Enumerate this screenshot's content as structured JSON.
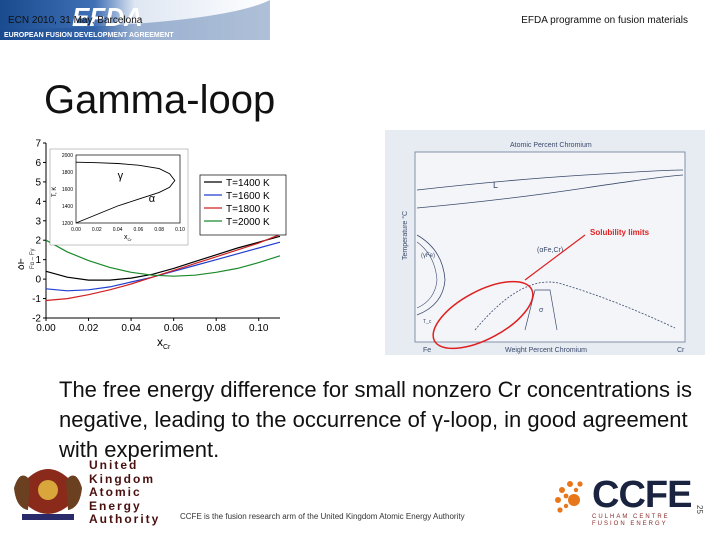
{
  "header": {
    "left_meta": "ECN 2010, 31 May, Barcelona",
    "right_meta": "EFDA programme on fusion materials",
    "logo_text": "EFDA",
    "banner_caption": "EUROPEAN FUSION DEVELOPMENT AGREEMENT",
    "colors": {
      "banner_dark": "#1a4b8f",
      "banner_light": "#e8eef7"
    }
  },
  "slide": {
    "title": "Gamma-loop",
    "body": "The free energy difference for small nonzero Cr concentrations is negative, leading to the occurrence of γ-loop, in good agreement with experiment."
  },
  "chart_data": [
    {
      "type": "line",
      "xlabel": "x",
      "xlabel_sub": "Cr",
      "ylabel": "δF",
      "ylabel_note": "Fα – Fγ",
      "xlim": [
        0.0,
        0.11
      ],
      "ylim": [
        -2,
        7
      ],
      "x_ticks": [
        "0.00",
        "0.02",
        "0.04",
        "0.06",
        "0.08",
        "0.10"
      ],
      "y_ticks": [
        "-2",
        "-1",
        "0",
        "1",
        "2",
        "3",
        "4",
        "5",
        "6",
        "7"
      ],
      "legend": "top-right",
      "series": [
        {
          "name": "T=1400 K",
          "color": "#000000",
          "x": [
            0.0,
            0.01,
            0.02,
            0.03,
            0.04,
            0.05,
            0.06,
            0.07,
            0.08,
            0.09,
            0.1,
            0.11
          ],
          "y": [
            0.4,
            0.1,
            -0.05,
            -0.05,
            0.05,
            0.25,
            0.55,
            0.9,
            1.25,
            1.6,
            1.9,
            2.2
          ]
        },
        {
          "name": "T=1600 K",
          "color": "#1f3fd0",
          "x": [
            0.0,
            0.01,
            0.02,
            0.03,
            0.04,
            0.05,
            0.06,
            0.07,
            0.08,
            0.09,
            0.1,
            0.11
          ],
          "y": [
            -0.5,
            -0.6,
            -0.55,
            -0.4,
            -0.15,
            0.1,
            0.4,
            0.7,
            1.0,
            1.3,
            1.6,
            1.9
          ]
        },
        {
          "name": "T=1800 K",
          "color": "#d02020",
          "x": [
            0.0,
            0.01,
            0.02,
            0.03,
            0.04,
            0.05,
            0.06,
            0.07,
            0.08,
            0.09,
            0.1,
            0.11
          ],
          "y": [
            -1.1,
            -1.0,
            -0.8,
            -0.55,
            -0.25,
            0.1,
            0.45,
            0.8,
            1.15,
            1.5,
            1.85,
            2.3
          ]
        },
        {
          "name": "T=2000 K",
          "color": "#1a8a2a",
          "x": [
            0.0,
            0.01,
            0.02,
            0.03,
            0.04,
            0.05,
            0.06,
            0.07,
            0.08,
            0.09,
            0.1,
            0.11
          ],
          "y": [
            2.0,
            1.4,
            0.95,
            0.6,
            0.35,
            0.2,
            0.15,
            0.2,
            0.35,
            0.55,
            0.85,
            1.2
          ]
        }
      ],
      "inset": {
        "type": "line",
        "xlabel": "x",
        "xlabel_sub": "Cr",
        "ylabel": "T, K",
        "xlim": [
          0.0,
          0.1
        ],
        "ylim": [
          1200,
          2000
        ],
        "x_ticks": [
          "0.00",
          "0.02",
          "0.04",
          "0.06",
          "0.08",
          "0.10"
        ],
        "y_ticks": [
          "1200",
          "1400",
          "1600",
          "1800",
          "2000"
        ],
        "region_labels": [
          "γ",
          "α"
        ],
        "boundary": {
          "x": [
            0.0,
            0.02,
            0.04,
            0.06,
            0.08,
            0.09,
            0.095,
            0.09,
            0.08,
            0.06,
            0.04,
            0.02,
            0.0
          ],
          "y": [
            1180,
            1300,
            1400,
            1480,
            1560,
            1620,
            1700,
            1780,
            1840,
            1880,
            1900,
            1910,
            1915
          ]
        }
      }
    },
    {
      "type": "diagram",
      "title": "Atomic Percent Chromium",
      "xlabel": "Weight Percent Chromium",
      "ylabel": "Temperature °C",
      "x_end_labels": [
        "Fe",
        "Cr"
      ],
      "phase_labels": [
        "L",
        "(γFe)",
        "(αFe,Cr)",
        "σ",
        "T_c"
      ],
      "annotation": "Solubility limits",
      "annotation_color": "#e02020"
    }
  ],
  "footer": {
    "ukaea_lines": [
      "United",
      "Kingdom",
      "Atomic",
      "Energy",
      "Authority"
    ],
    "note": "CCFE is the fusion research arm of the United Kingdom Atomic Energy Authority",
    "ccfe_word": "CCFE",
    "ccfe_sub1": "CULHAM CENTRE",
    "ccfe_sub2": "FUSION ENERGY",
    "page_number": "25"
  }
}
